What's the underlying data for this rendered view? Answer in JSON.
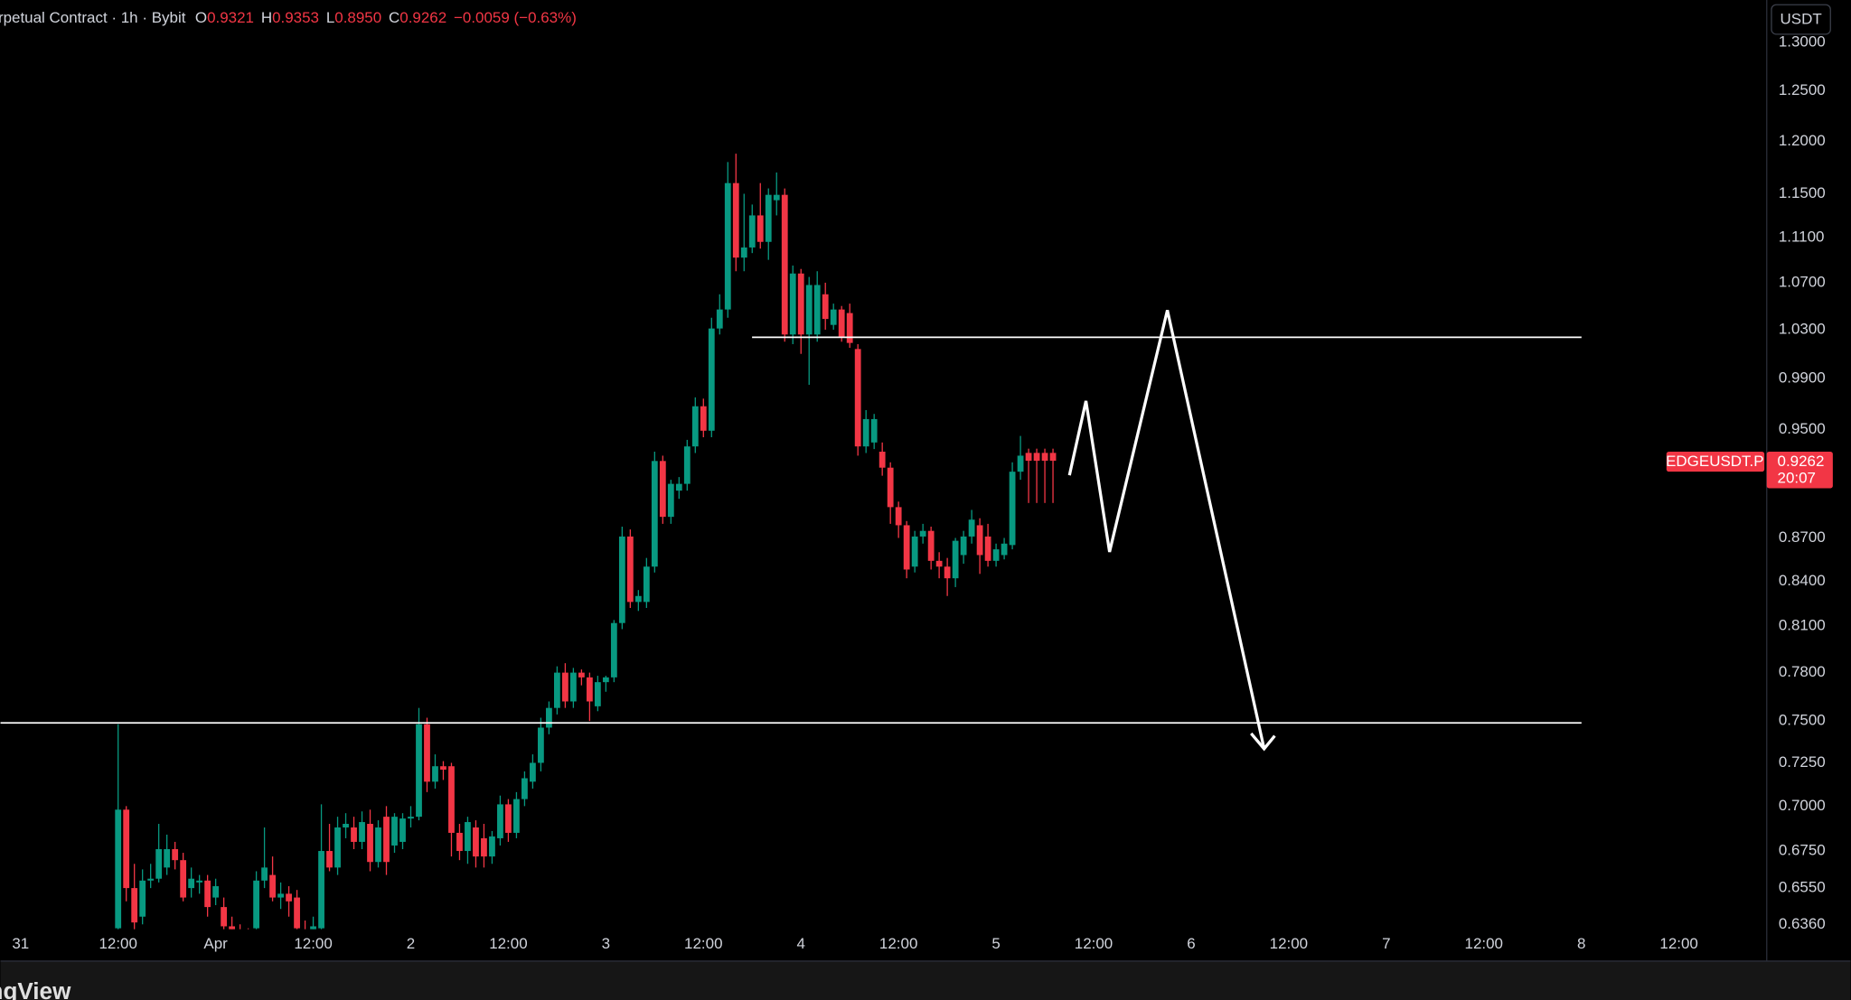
{
  "header": {
    "symbol": "rpetual Contract · 1h · Bybit",
    "ohlc": [
      {
        "key": "O",
        "value": "0.9321"
      },
      {
        "key": "H",
        "value": "0.9353"
      },
      {
        "key": "L",
        "value": "0.8950"
      },
      {
        "key": "C",
        "value": "0.9262"
      }
    ],
    "change": "−0.0059 (−0.63%)"
  },
  "currency": "USDT",
  "price_tag": {
    "symbol": "EDGEUSDT.P",
    "price": "0.9262",
    "countdown": "20:07"
  },
  "watermark": "ngView",
  "chart_data": {
    "type": "candlestick",
    "log_scale": true,
    "grid": false,
    "up_color": "#089981",
    "down_color": "#f23645",
    "xlim": [
      -2.47,
      214.8
    ],
    "ylim": [
      0.6335,
      1.3456
    ],
    "xticks": [
      {
        "value": 0,
        "label": "31"
      },
      {
        "value": 12,
        "label": "12:00"
      },
      {
        "value": 24,
        "label": "Apr"
      },
      {
        "value": 36,
        "label": "12:00"
      },
      {
        "value": 48,
        "label": "2"
      },
      {
        "value": 60,
        "label": "12:00"
      },
      {
        "value": 72,
        "label": "3"
      },
      {
        "value": 84,
        "label": "12:00"
      },
      {
        "value": 96,
        "label": "4"
      },
      {
        "value": 108,
        "label": "12:00"
      },
      {
        "value": 120,
        "label": "5"
      },
      {
        "value": 132,
        "label": "12:00"
      },
      {
        "value": 144,
        "label": "6"
      },
      {
        "value": 156,
        "label": "12:00"
      },
      {
        "value": 168,
        "label": "7"
      },
      {
        "value": 180,
        "label": "12:00"
      },
      {
        "value": 192,
        "label": "8"
      },
      {
        "value": 204,
        "label": "12:00"
      }
    ],
    "yticks": [
      {
        "value": 1.3,
        "label": "1.3000"
      },
      {
        "value": 1.25,
        "label": "1.2500"
      },
      {
        "value": 1.2,
        "label": "1.2000"
      },
      {
        "value": 1.15,
        "label": "1.1500"
      },
      {
        "value": 1.11,
        "label": "1.1100"
      },
      {
        "value": 1.07,
        "label": "1.0700"
      },
      {
        "value": 1.03,
        "label": "1.0300"
      },
      {
        "value": 0.99,
        "label": "0.9900"
      },
      {
        "value": 0.95,
        "label": "0.9500"
      },
      {
        "value": 0.87,
        "label": "0.8700"
      },
      {
        "value": 0.84,
        "label": "0.8400"
      },
      {
        "value": 0.81,
        "label": "0.8100"
      },
      {
        "value": 0.78,
        "label": "0.7800"
      },
      {
        "value": 0.75,
        "label": "0.7500"
      },
      {
        "value": 0.725,
        "label": "0.7250"
      },
      {
        "value": 0.7,
        "label": "0.7000"
      },
      {
        "value": 0.675,
        "label": "0.6750"
      },
      {
        "value": 0.655,
        "label": "0.6550"
      },
      {
        "value": 0.636,
        "label": "0.6360"
      }
    ],
    "x": [
      12,
      13,
      14,
      15,
      16,
      17,
      18,
      19,
      20,
      21,
      22,
      23,
      24,
      25,
      26,
      27,
      28,
      29,
      30,
      31,
      32,
      33,
      34,
      35,
      36,
      37,
      38,
      39,
      40,
      41,
      42,
      43,
      44,
      45,
      46,
      47,
      48,
      49,
      50,
      51,
      52,
      53,
      54,
      55,
      56,
      57,
      58,
      59,
      60,
      61,
      62,
      63,
      64,
      65,
      66,
      67,
      68,
      69,
      70,
      71,
      72,
      73,
      74,
      75,
      76,
      77,
      78,
      79,
      80,
      81,
      82,
      83,
      84,
      85,
      86,
      87,
      88,
      89,
      90,
      91,
      92,
      93,
      94,
      95,
      96,
      97,
      98,
      99,
      100,
      101,
      102,
      103,
      104,
      105,
      106,
      107,
      108,
      109,
      110,
      111,
      112,
      113,
      114,
      115,
      116,
      117,
      118,
      119,
      120,
      121,
      122,
      123,
      124,
      125,
      126,
      127
    ],
    "open": [
      0.634,
      0.698,
      0.655,
      0.64,
      0.659,
      0.66,
      0.666,
      0.676,
      0.67,
      0.655,
      0.658,
      0.659,
      0.65,
      0.645,
      0.635,
      0.632,
      0.628,
      0.634,
      0.659,
      0.662,
      0.65,
      0.652,
      0.65,
      0.632,
      0.628,
      0.634,
      0.675,
      0.666,
      0.688,
      0.688,
      0.68,
      0.69,
      0.669,
      0.694,
      0.678,
      0.68,
      0.693,
      0.694,
      0.748,
      0.714,
      0.723,
      0.723,
      0.685,
      0.675,
      0.688,
      0.682,
      0.672,
      0.682,
      0.701,
      0.685,
      0.704,
      0.714,
      0.725,
      0.746,
      0.758,
      0.78,
      0.762,
      0.78,
      0.777,
      0.759,
      0.774,
      0.777,
      0.812,
      0.871,
      0.826,
      0.826,
      0.85,
      0.926,
      0.885,
      0.904,
      0.909,
      0.937,
      0.968,
      0.949,
      1.031,
      1.047,
      1.16,
      1.092,
      1.101,
      1.13,
      1.106,
      1.144,
      1.149,
      1.026,
      1.078,
      1.026,
      1.026,
      1.06,
      1.034,
      1.047,
      1.044,
      1.014,
      0.937,
      0.94,
      0.933,
      0.921,
      0.892,
      0.879,
      0.85,
      0.871,
      0.875,
      0.854,
      0.85,
      0.842,
      0.858,
      0.871,
      0.879,
      0.871,
      0.854,
      0.858,
      0.865,
      0.918,
      0.9321,
      0.9321,
      0.9321,
      0.9321
    ],
    "high": [
      0.748,
      0.7,
      0.668,
      0.665,
      0.668,
      0.69,
      0.684,
      0.68,
      0.674,
      0.666,
      0.662,
      0.662,
      0.66,
      0.65,
      0.64,
      0.636,
      0.634,
      0.664,
      0.688,
      0.672,
      0.658,
      0.656,
      0.654,
      0.638,
      0.64,
      0.701,
      0.69,
      0.694,
      0.696,
      0.694,
      0.697,
      0.698,
      0.692,
      0.7,
      0.696,
      0.696,
      0.7,
      0.758,
      0.752,
      0.73,
      0.726,
      0.725,
      0.69,
      0.694,
      0.692,
      0.69,
      0.686,
      0.706,
      0.704,
      0.708,
      0.72,
      0.73,
      0.752,
      0.762,
      0.784,
      0.786,
      0.783,
      0.782,
      0.78,
      0.778,
      0.778,
      0.814,
      0.878,
      0.876,
      0.834,
      0.856,
      0.933,
      0.93,
      0.912,
      0.914,
      0.942,
      0.975,
      0.974,
      1.04,
      1.06,
      1.18,
      1.188,
      1.15,
      1.14,
      1.16,
      1.155,
      1.17,
      1.155,
      1.085,
      1.082,
      1.075,
      1.08,
      1.07,
      1.052,
      1.05,
      1.052,
      1.018,
      0.965,
      0.962,
      0.94,
      0.925,
      0.896,
      0.882,
      0.875,
      0.88,
      0.878,
      0.86,
      0.856,
      0.87,
      0.875,
      0.89,
      0.884,
      0.88,
      0.866,
      0.87,
      0.925,
      0.945,
      0.9353,
      0.9353,
      0.9353,
      0.9353
    ],
    "low": [
      0.63,
      0.648,
      0.633,
      0.636,
      0.655,
      0.658,
      0.662,
      0.665,
      0.648,
      0.65,
      0.652,
      0.64,
      0.646,
      0.632,
      0.628,
      0.622,
      0.62,
      0.632,
      0.655,
      0.648,
      0.644,
      0.64,
      0.63,
      0.622,
      0.626,
      0.632,
      0.664,
      0.662,
      0.682,
      0.676,
      0.676,
      0.664,
      0.666,
      0.662,
      0.674,
      0.676,
      0.688,
      0.692,
      0.708,
      0.71,
      0.715,
      0.672,
      0.67,
      0.668,
      0.666,
      0.666,
      0.668,
      0.678,
      0.68,
      0.682,
      0.7,
      0.71,
      0.72,
      0.742,
      0.754,
      0.758,
      0.758,
      0.772,
      0.75,
      0.756,
      0.768,
      0.774,
      0.808,
      0.822,
      0.82,
      0.822,
      0.846,
      0.88,
      0.88,
      0.898,
      0.904,
      0.932,
      0.944,
      0.944,
      1.026,
      1.04,
      1.08,
      1.08,
      1.096,
      1.1,
      1.09,
      1.13,
      1.02,
      1.018,
      1.01,
      0.985,
      1.02,
      1.03,
      1.03,
      1.02,
      1.015,
      0.93,
      0.932,
      0.935,
      0.915,
      0.88,
      0.87,
      0.842,
      0.846,
      0.866,
      0.848,
      0.842,
      0.83,
      0.836,
      0.852,
      0.866,
      0.845,
      0.85,
      0.85,
      0.855,
      0.862,
      0.912,
      0.895,
      0.895,
      0.895,
      0.895
    ],
    "close": [
      0.698,
      0.655,
      0.637,
      0.659,
      0.66,
      0.676,
      0.676,
      0.67,
      0.65,
      0.66,
      0.659,
      0.645,
      0.656,
      0.635,
      0.632,
      0.628,
      0.626,
      0.659,
      0.666,
      0.65,
      0.652,
      0.648,
      0.634,
      0.628,
      0.635,
      0.675,
      0.666,
      0.688,
      0.69,
      0.68,
      0.691,
      0.669,
      0.688,
      0.669,
      0.694,
      0.693,
      0.694,
      0.748,
      0.714,
      0.723,
      0.721,
      0.685,
      0.675,
      0.691,
      0.672,
      0.672,
      0.683,
      0.701,
      0.685,
      0.704,
      0.716,
      0.725,
      0.746,
      0.758,
      0.78,
      0.762,
      0.78,
      0.777,
      0.762,
      0.774,
      0.777,
      0.812,
      0.871,
      0.826,
      0.83,
      0.85,
      0.926,
      0.885,
      0.909,
      0.909,
      0.937,
      0.968,
      0.949,
      1.031,
      1.047,
      1.16,
      1.092,
      1.101,
      1.13,
      1.106,
      1.149,
      1.149,
      1.026,
      1.078,
      1.026,
      1.068,
      1.068,
      1.039,
      1.047,
      1.024,
      1.019,
      0.937,
      0.958,
      0.958,
      0.921,
      0.892,
      0.879,
      0.848,
      0.871,
      0.875,
      0.854,
      0.85,
      0.842,
      0.868,
      0.871,
      0.883,
      0.858,
      0.854,
      0.862,
      0.866,
      0.918,
      0.93,
      0.9262,
      0.9262,
      0.9262,
      0.9262
    ]
  }
}
